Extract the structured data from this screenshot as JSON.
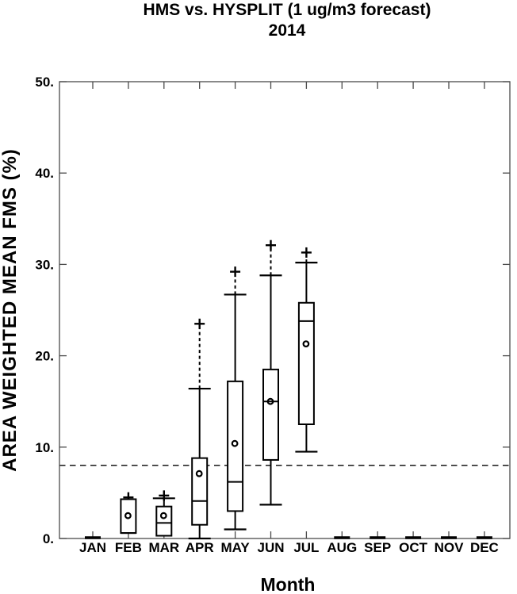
{
  "chart_data": {
    "type": "boxplot",
    "title": "HMS vs. HYSPLIT (1 ug/m3 forecast)",
    "subtitle": "2014",
    "xlabel": "Month",
    "ylabel": "AREA WEIGHTED MEAN FMS (%)",
    "ylim": [
      0,
      50
    ],
    "yticks": [
      0,
      10,
      20,
      30,
      40,
      50
    ],
    "ytick_labels": [
      "0.",
      "10.",
      "20.",
      "30.",
      "40.",
      "50."
    ],
    "categories": [
      "JAN",
      "FEB",
      "MAR",
      "APR",
      "MAY",
      "JUN",
      "JUL",
      "AUG",
      "SEP",
      "OCT",
      "NOV",
      "DEC"
    ],
    "grid": false,
    "legend": null,
    "reference_line": {
      "y": 8,
      "style": "dashed"
    },
    "colors": {
      "ink": "#000000",
      "frame": "#4a4a4a",
      "background": "#ffffff"
    },
    "series": [
      {
        "month": "JAN",
        "whisker_low": 0,
        "q1": 0,
        "median": 0,
        "q3": 0,
        "whisker_high": 0,
        "outlier_high": null,
        "mean": null
      },
      {
        "month": "FEB",
        "whisker_low": 0.6,
        "q1": 0.6,
        "median": 0.6,
        "q3": 4.3,
        "whisker_high": 4.3,
        "outlier_high": 4.5,
        "mean": 2.5
      },
      {
        "month": "MAR",
        "whisker_low": 0.3,
        "q1": 0.3,
        "median": 1.7,
        "q3": 3.5,
        "whisker_high": 4.4,
        "outlier_high": 4.7,
        "mean": 2.5
      },
      {
        "month": "APR",
        "whisker_low": 0.0,
        "q1": 1.5,
        "median": 4.1,
        "q3": 8.8,
        "whisker_high": 16.4,
        "outlier_high": 23.5,
        "mean": 7.1
      },
      {
        "month": "MAY",
        "whisker_low": 1.0,
        "q1": 3.0,
        "median": 6.2,
        "q3": 17.2,
        "whisker_high": 26.7,
        "outlier_high": 29.2,
        "mean": 10.4
      },
      {
        "month": "JUN",
        "whisker_low": 3.7,
        "q1": 8.6,
        "median": 15.0,
        "q3": 18.5,
        "whisker_high": 28.8,
        "outlier_high": 32.1,
        "mean": 15.0
      },
      {
        "month": "JUL",
        "whisker_low": 9.5,
        "q1": 12.5,
        "median": 23.8,
        "q3": 25.8,
        "whisker_high": 30.2,
        "outlier_high": 31.3,
        "mean": 21.3
      },
      {
        "month": "AUG",
        "whisker_low": 0,
        "q1": 0,
        "median": 0,
        "q3": 0,
        "whisker_high": 0,
        "outlier_high": null,
        "mean": null
      },
      {
        "month": "SEP",
        "whisker_low": 0,
        "q1": 0,
        "median": 0,
        "q3": 0,
        "whisker_high": 0,
        "outlier_high": null,
        "mean": null
      },
      {
        "month": "OCT",
        "whisker_low": 0,
        "q1": 0,
        "median": 0,
        "q3": 0,
        "whisker_high": 0,
        "outlier_high": null,
        "mean": null
      },
      {
        "month": "NOV",
        "whisker_low": 0,
        "q1": 0,
        "median": 0,
        "q3": 0,
        "whisker_high": 0,
        "outlier_high": null,
        "mean": null
      },
      {
        "month": "DEC",
        "whisker_low": 0,
        "q1": 0,
        "median": 0,
        "q3": 0,
        "whisker_high": 0,
        "outlier_high": null,
        "mean": null
      }
    ]
  }
}
